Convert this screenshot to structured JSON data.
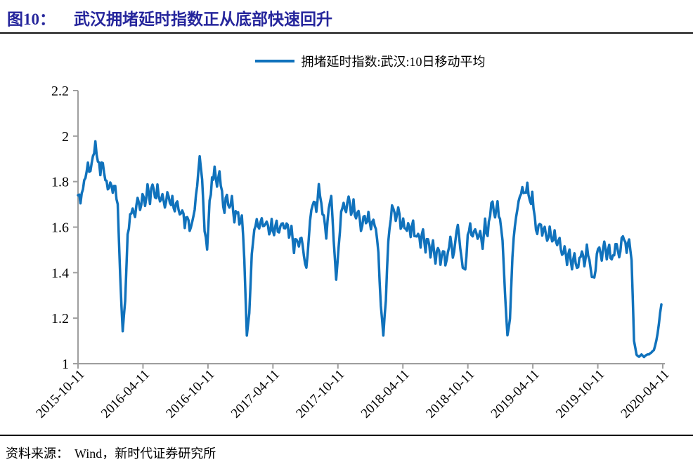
{
  "header": {
    "figure_label": "图10：",
    "title": "武汉拥堵延时指数正从底部快速回升"
  },
  "legend": {
    "series_label": "拥堵延时指数:武汉:10日移动平均"
  },
  "footer": {
    "source_label": "资料来源：",
    "source_text": "Wind，新时代证券研究所"
  },
  "colors": {
    "title": "#26269C",
    "divider": "#111111",
    "line": "#1072BC",
    "axis": "#9E9E9E",
    "text": "#000000"
  },
  "chart_data": {
    "type": "line",
    "title": "武汉拥堵延时指数正从底部快速回升",
    "ylim": [
      1,
      2.2
    ],
    "yticks": [
      1,
      1.2,
      1.4,
      1.6,
      1.8,
      2,
      2.2
    ],
    "ytick_labels": [
      "1",
      "1.2",
      "1.4",
      "1.6",
      "1.8",
      "2",
      "2.2"
    ],
    "xtick_labels": [
      "2015-10-11",
      "2016-04-11",
      "2016-10-11",
      "2017-04-11",
      "2017-10-11",
      "2018-04-11",
      "2018-10-11",
      "2019-04-11",
      "2019-10-11",
      "2020-04-11"
    ],
    "grid": false,
    "legend_position": "top-center",
    "series": [
      {
        "name": "拥堵延时指数:武汉:10日移动平均",
        "dates": [
          "2015-10-11",
          "2015-10-18",
          "2015-10-25",
          "2015-11-01",
          "2015-11-08",
          "2015-11-15",
          "2015-11-22",
          "2015-11-29",
          "2015-12-06",
          "2015-12-13",
          "2015-12-20",
          "2015-12-27",
          "2016-01-03",
          "2016-01-10",
          "2016-01-17",
          "2016-01-24",
          "2016-01-31",
          "2016-02-07",
          "2016-02-14",
          "2016-02-21",
          "2016-02-28",
          "2016-03-06",
          "2016-03-13",
          "2016-03-20",
          "2016-03-27",
          "2016-04-03",
          "2016-04-10",
          "2016-04-17",
          "2016-04-24",
          "2016-05-01",
          "2016-05-08",
          "2016-05-15",
          "2016-05-22",
          "2016-05-29",
          "2016-06-05",
          "2016-06-12",
          "2016-06-19",
          "2016-06-26",
          "2016-07-03",
          "2016-07-10",
          "2016-07-17",
          "2016-07-24",
          "2016-07-31",
          "2016-08-07",
          "2016-08-14",
          "2016-08-21",
          "2016-08-28",
          "2016-09-04",
          "2016-09-11",
          "2016-09-18",
          "2016-09-25",
          "2016-10-02",
          "2016-10-09",
          "2016-10-16",
          "2016-10-23",
          "2016-10-30",
          "2016-11-06",
          "2016-11-13",
          "2016-11-20",
          "2016-11-27",
          "2016-12-04",
          "2016-12-11",
          "2016-12-18",
          "2016-12-25",
          "2017-01-01",
          "2017-01-08",
          "2017-01-15",
          "2017-01-22",
          "2017-01-29",
          "2017-02-05",
          "2017-02-12",
          "2017-02-19",
          "2017-02-26",
          "2017-03-05",
          "2017-03-12",
          "2017-03-19",
          "2017-03-26",
          "2017-04-02",
          "2017-04-09",
          "2017-04-16",
          "2017-04-23",
          "2017-04-30",
          "2017-05-07",
          "2017-05-14",
          "2017-05-21",
          "2017-05-28",
          "2017-06-04",
          "2017-06-11",
          "2017-06-18",
          "2017-06-25",
          "2017-07-02",
          "2017-07-09",
          "2017-07-16",
          "2017-07-23",
          "2017-07-30",
          "2017-08-06",
          "2017-08-13",
          "2017-08-20",
          "2017-08-27",
          "2017-09-03",
          "2017-09-10",
          "2017-09-17",
          "2017-09-24",
          "2017-10-01",
          "2017-10-08",
          "2017-10-15",
          "2017-10-22",
          "2017-10-29",
          "2017-11-05",
          "2017-11-12",
          "2017-11-19",
          "2017-11-26",
          "2017-12-03",
          "2017-12-10",
          "2017-12-17",
          "2017-12-24",
          "2017-12-31",
          "2018-01-07",
          "2018-01-14",
          "2018-01-21",
          "2018-01-28",
          "2018-02-04",
          "2018-02-11",
          "2018-02-18",
          "2018-02-25",
          "2018-03-04",
          "2018-03-11",
          "2018-03-18",
          "2018-03-25",
          "2018-04-01",
          "2018-04-08",
          "2018-04-15",
          "2018-04-22",
          "2018-04-29",
          "2018-05-06",
          "2018-05-13",
          "2018-05-20",
          "2018-05-27",
          "2018-06-03",
          "2018-06-10",
          "2018-06-17",
          "2018-06-24",
          "2018-07-01",
          "2018-07-08",
          "2018-07-15",
          "2018-07-22",
          "2018-07-29",
          "2018-08-05",
          "2018-08-12",
          "2018-08-19",
          "2018-08-26",
          "2018-09-02",
          "2018-09-09",
          "2018-09-16",
          "2018-09-23",
          "2018-09-30",
          "2018-10-07",
          "2018-10-14",
          "2018-10-21",
          "2018-10-28",
          "2018-11-04",
          "2018-11-11",
          "2018-11-18",
          "2018-11-25",
          "2018-12-02",
          "2018-12-09",
          "2018-12-16",
          "2018-12-23",
          "2018-12-30",
          "2019-01-06",
          "2019-01-13",
          "2019-01-20",
          "2019-01-27",
          "2019-02-03",
          "2019-02-10",
          "2019-02-17",
          "2019-02-24",
          "2019-03-03",
          "2019-03-10",
          "2019-03-17",
          "2019-03-24",
          "2019-03-31",
          "2019-04-07",
          "2019-04-14",
          "2019-04-21",
          "2019-04-28",
          "2019-05-05",
          "2019-05-12",
          "2019-05-19",
          "2019-05-26",
          "2019-06-02",
          "2019-06-09",
          "2019-06-16",
          "2019-06-23",
          "2019-06-30",
          "2019-07-07",
          "2019-07-14",
          "2019-07-21",
          "2019-07-28",
          "2019-08-04",
          "2019-08-11",
          "2019-08-18",
          "2019-08-25",
          "2019-09-01",
          "2019-09-08",
          "2019-09-15",
          "2019-09-22",
          "2019-09-29",
          "2019-10-06",
          "2019-10-13",
          "2019-10-20",
          "2019-10-27",
          "2019-11-03",
          "2019-11-10",
          "2019-11-17",
          "2019-11-24",
          "2019-12-01",
          "2019-12-08",
          "2019-12-15",
          "2019-12-22",
          "2019-12-29",
          "2020-01-05",
          "2020-01-12",
          "2020-01-19",
          "2020-01-26",
          "2020-02-02",
          "2020-02-09",
          "2020-02-16",
          "2020-02-23",
          "2020-03-01",
          "2020-03-08",
          "2020-03-15",
          "2020-03-22",
          "2020-03-29",
          "2020-04-05",
          "2020-04-11"
        ],
        "values": [
          1.74,
          1.71,
          1.76,
          1.82,
          1.87,
          1.83,
          1.92,
          1.97,
          1.9,
          1.85,
          1.88,
          1.81,
          1.77,
          1.81,
          1.75,
          1.78,
          1.7,
          1.38,
          1.14,
          1.28,
          1.56,
          1.66,
          1.7,
          1.66,
          1.72,
          1.66,
          1.74,
          1.69,
          1.78,
          1.72,
          1.79,
          1.72,
          1.77,
          1.7,
          1.76,
          1.68,
          1.74,
          1.69,
          1.74,
          1.66,
          1.71,
          1.64,
          1.69,
          1.61,
          1.66,
          1.57,
          1.62,
          1.68,
          1.78,
          1.91,
          1.8,
          1.58,
          1.5,
          1.72,
          1.8,
          1.85,
          1.78,
          1.83,
          1.74,
          1.68,
          1.74,
          1.67,
          1.72,
          1.64,
          1.68,
          1.62,
          1.66,
          1.45,
          1.13,
          1.22,
          1.48,
          1.6,
          1.64,
          1.59,
          1.65,
          1.6,
          1.64,
          1.56,
          1.62,
          1.57,
          1.63,
          1.56,
          1.62,
          1.58,
          1.63,
          1.56,
          1.6,
          1.5,
          1.56,
          1.51,
          1.57,
          1.48,
          1.43,
          1.55,
          1.68,
          1.73,
          1.66,
          1.77,
          1.7,
          1.64,
          1.55,
          1.7,
          1.74,
          1.55,
          1.36,
          1.52,
          1.66,
          1.72,
          1.65,
          1.74,
          1.67,
          1.71,
          1.63,
          1.68,
          1.6,
          1.65,
          1.62,
          1.67,
          1.6,
          1.64,
          1.58,
          1.48,
          1.25,
          1.12,
          1.28,
          1.55,
          1.65,
          1.7,
          1.63,
          1.68,
          1.6,
          1.65,
          1.58,
          1.62,
          1.56,
          1.61,
          1.55,
          1.59,
          1.53,
          1.58,
          1.5,
          1.56,
          1.48,
          1.54,
          1.46,
          1.52,
          1.45,
          1.51,
          1.44,
          1.5,
          1.55,
          1.48,
          1.54,
          1.6,
          1.52,
          1.43,
          1.42,
          1.55,
          1.6,
          1.54,
          1.6,
          1.54,
          1.59,
          1.52,
          1.62,
          1.56,
          1.66,
          1.72,
          1.65,
          1.7,
          1.63,
          1.55,
          1.3,
          1.12,
          1.2,
          1.48,
          1.6,
          1.68,
          1.74,
          1.79,
          1.74,
          1.78,
          1.7,
          1.74,
          1.63,
          1.58,
          1.63,
          1.56,
          1.61,
          1.54,
          1.59,
          1.52,
          1.57,
          1.5,
          1.55,
          1.48,
          1.53,
          1.45,
          1.5,
          1.43,
          1.48,
          1.41,
          1.46,
          1.5,
          1.44,
          1.52,
          1.47,
          1.4,
          1.37,
          1.48,
          1.53,
          1.47,
          1.52,
          1.46,
          1.51,
          1.44,
          1.49,
          1.54,
          1.48,
          1.53,
          1.56,
          1.5,
          1.54,
          1.45,
          1.1,
          1.04,
          1.03,
          1.04,
          1.03,
          1.04,
          1.04,
          1.05,
          1.06,
          1.1,
          1.18,
          1.26
        ]
      }
    ]
  }
}
